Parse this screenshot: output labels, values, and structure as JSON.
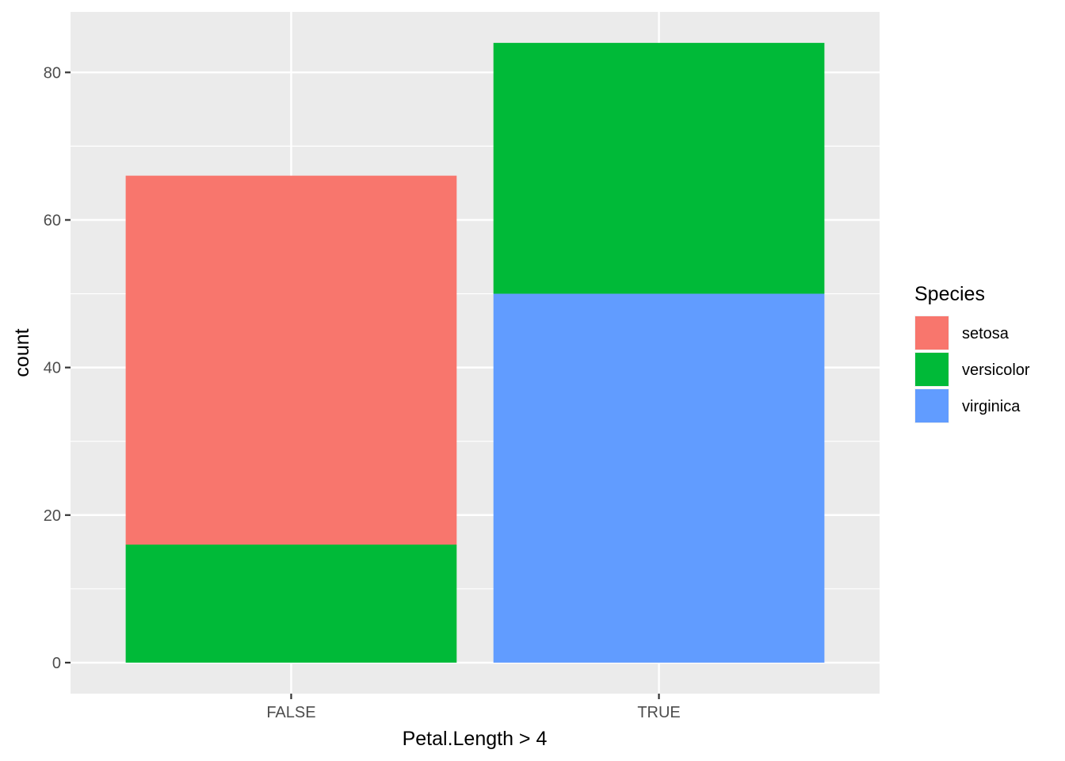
{
  "chart_data": {
    "type": "bar",
    "stacked": true,
    "categories": [
      "FALSE",
      "TRUE"
    ],
    "series": [
      {
        "name": "setosa",
        "values": [
          50,
          0
        ],
        "color": "#F8766D"
      },
      {
        "name": "versicolor",
        "values": [
          16,
          34
        ],
        "color": "#00BA38"
      },
      {
        "name": "virginica",
        "values": [
          0,
          50
        ],
        "color": "#619CFF"
      }
    ],
    "xlabel": "Petal.Length > 4",
    "ylabel": "count",
    "ylim": [
      -4.2,
      88.2
    ],
    "yticks": [
      0,
      20,
      40,
      60,
      80
    ],
    "grid": true,
    "legend": {
      "title": "Species",
      "position": "right"
    }
  }
}
